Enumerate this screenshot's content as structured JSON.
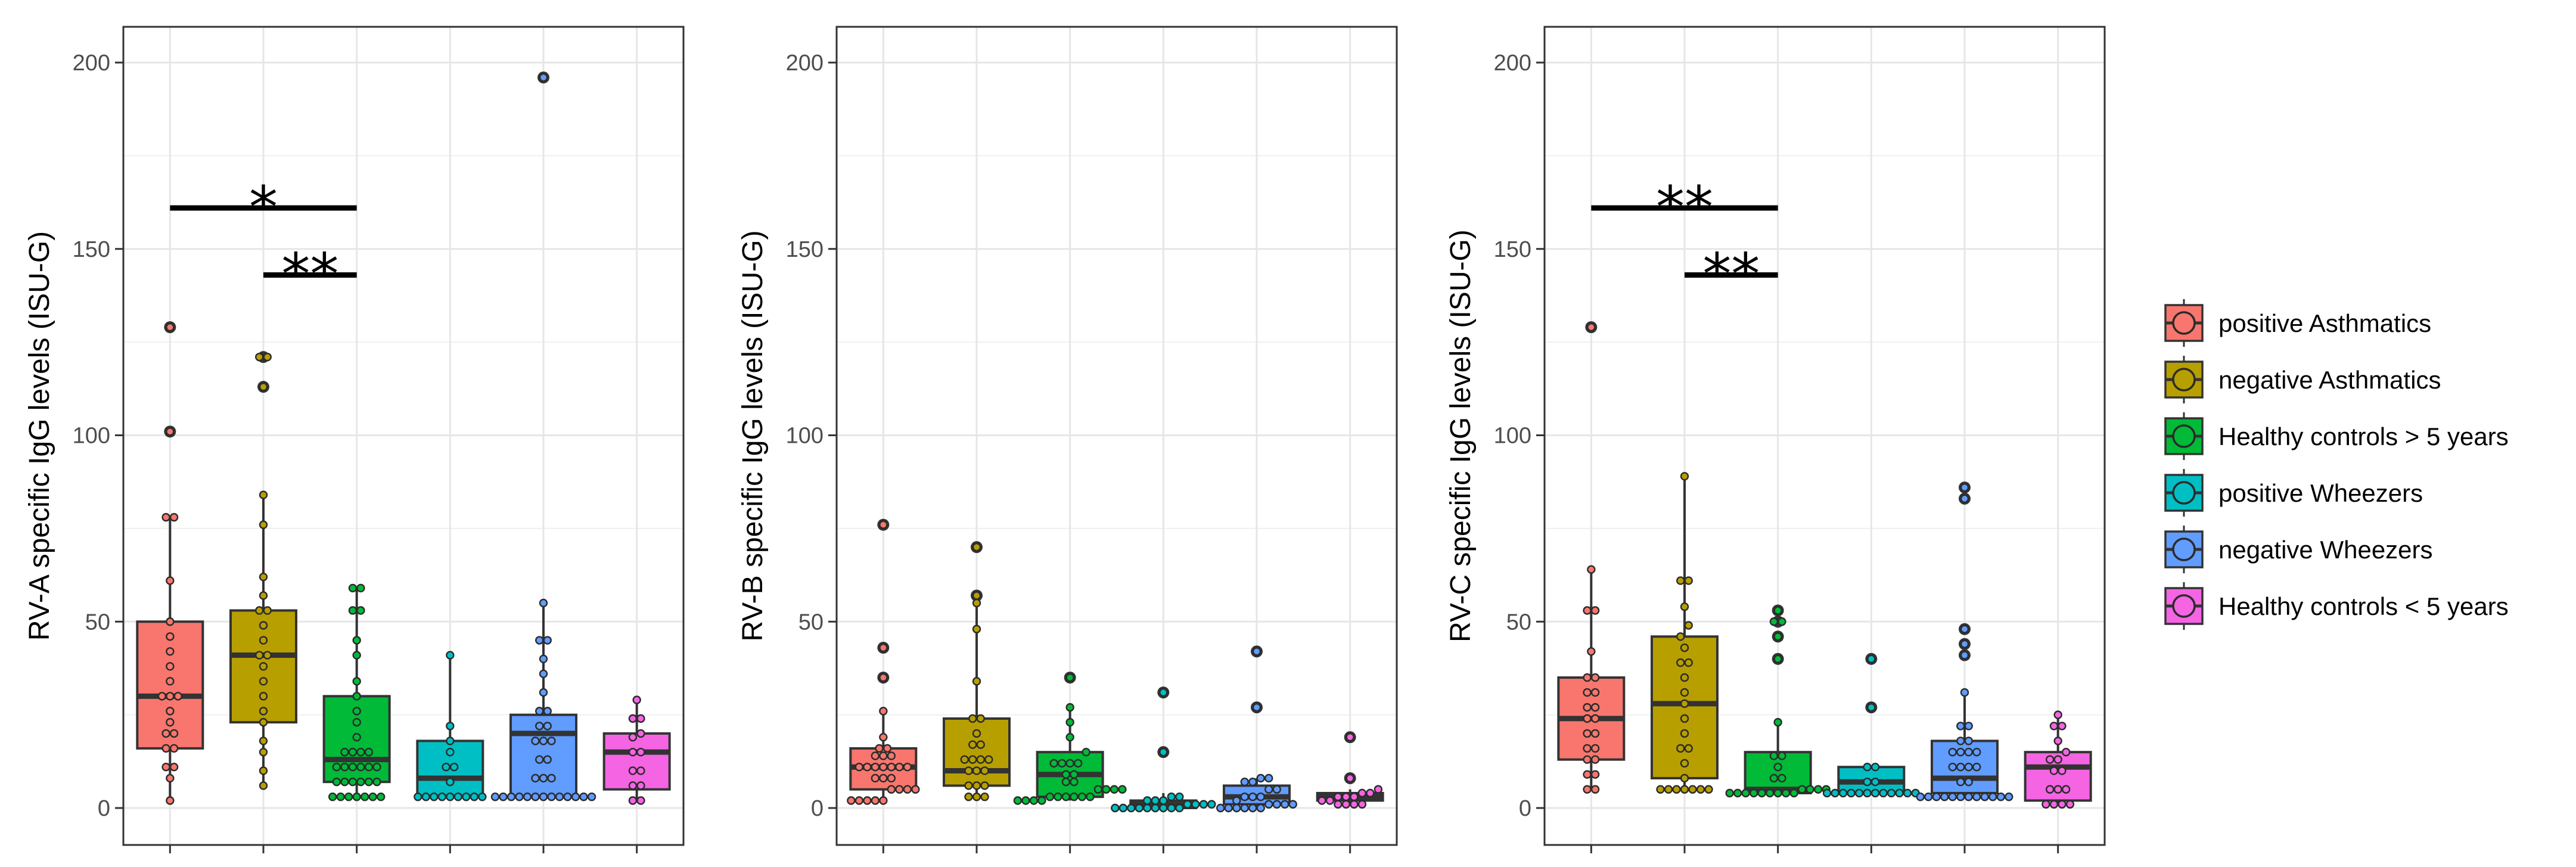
{
  "chart_data": {
    "type": "boxplot",
    "categories": [
      "positive Asthmatics",
      "negative Asthmatics",
      "Healthy controls > 5 years",
      "positive Wheezers",
      "negative Wheezers",
      "Healthy controls < 5 years"
    ],
    "colors": [
      "#F8766D",
      "#B79F00",
      "#00BA38",
      "#00BFC4",
      "#619CFF",
      "#F564E3"
    ],
    "ylim": [
      0,
      210
    ],
    "yticks": [
      0,
      50,
      100,
      150,
      200
    ],
    "legend": {
      "position": "right",
      "entries": [
        "positive Asthmatics",
        "negative Asthmatics",
        "Healthy controls > 5 years",
        "positive Wheezers",
        "negative Wheezers",
        "Healthy controls < 5 years"
      ]
    },
    "panels": [
      {
        "ylabel": "RV-A specific IgG levels (ISU-G)",
        "groups": [
          {
            "q1": 16,
            "median": 30,
            "q3": 50,
            "whisker_low": 2,
            "whisker_high": 78,
            "outliers": [
              101,
              129
            ],
            "points": [
              2,
              8,
              11,
              11,
              16,
              16,
              20,
              20,
              23,
              26,
              30,
              30,
              30,
              34,
              38,
              42,
              46,
              50,
              61,
              78,
              78,
              101,
              129
            ]
          },
          {
            "q1": 23,
            "median": 41,
            "q3": 53,
            "whisker_low": 6,
            "whisker_high": 84,
            "outliers": [
              113,
              121
            ],
            "points": [
              6,
              10,
              15,
              18,
              23,
              26,
              30,
              34,
              38,
              41,
              41,
              45,
              49,
              53,
              53,
              57,
              62,
              76,
              84,
              113,
              121,
              121
            ]
          },
          {
            "q1": 7,
            "median": 13,
            "q3": 30,
            "whisker_low": 3,
            "whisker_high": 59,
            "outliers": [],
            "points": [
              3,
              3,
              3,
              3,
              3,
              3,
              3,
              7,
              7,
              7,
              7,
              7,
              7,
              11,
              11,
              11,
              11,
              11,
              11,
              15,
              15,
              15,
              15,
              19,
              23,
              26,
              30,
              34,
              41,
              45,
              53,
              53,
              59,
              59
            ]
          },
          {
            "q1": 3,
            "median": 8,
            "q3": 18,
            "whisker_low": 3,
            "whisker_high": 41,
            "outliers": [],
            "points": [
              3,
              3,
              3,
              3,
              3,
              3,
              3,
              3,
              3,
              7,
              11,
              11,
              15,
              18,
              22,
              41
            ]
          },
          {
            "q1": 3,
            "median": 20,
            "q3": 25,
            "whisker_low": 3,
            "whisker_high": 55,
            "outliers": [
              196
            ],
            "points": [
              3,
              3,
              3,
              3,
              3,
              3,
              3,
              3,
              3,
              3,
              3,
              3,
              3,
              8,
              8,
              8,
              13,
              13,
              18,
              18,
              18,
              22,
              22,
              26,
              26,
              31,
              36,
              40,
              45,
              45,
              55,
              196
            ]
          },
          {
            "q1": 5,
            "median": 15,
            "q3": 20,
            "whisker_low": 2,
            "whisker_high": 29,
            "outliers": [],
            "points": [
              2,
              2,
              6,
              6,
              10,
              10,
              15,
              15,
              19,
              20,
              24,
              24,
              29
            ]
          }
        ],
        "significance": [
          {
            "from": 0,
            "to": 2,
            "label": "*",
            "y": 161
          },
          {
            "from": 1,
            "to": 2,
            "label": "**",
            "y": 143
          }
        ]
      },
      {
        "ylabel": "RV-B specific IgG levels (ISU-G)",
        "groups": [
          {
            "q1": 5,
            "median": 11,
            "q3": 16,
            "whisker_low": 2,
            "whisker_high": 26,
            "outliers": [
              35,
              43,
              76
            ],
            "points": [
              2,
              2,
              2,
              2,
              2,
              5,
              5,
              5,
              5,
              8,
              8,
              8,
              11,
              11,
              11,
              11,
              11,
              11,
              11,
              14,
              14,
              14,
              16,
              16,
              19,
              26,
              35,
              43,
              76
            ]
          },
          {
            "q1": 6,
            "median": 10,
            "q3": 24,
            "whisker_low": 3,
            "whisker_high": 55,
            "outliers": [
              57,
              70
            ],
            "points": [
              3,
              3,
              3,
              6,
              6,
              6,
              10,
              10,
              10,
              13,
              13,
              13,
              13,
              17,
              17,
              20,
              24,
              24,
              34,
              48,
              55,
              57,
              70
            ]
          },
          {
            "q1": 3,
            "median": 9,
            "q3": 15,
            "whisker_low": 2,
            "whisker_high": 27,
            "outliers": [
              35
            ],
            "points": [
              2,
              2,
              2,
              2,
              3,
              3,
              3,
              3,
              3,
              3,
              5,
              5,
              5,
              5,
              7,
              7,
              9,
              9,
              12,
              12,
              12,
              12,
              15,
              19,
              23,
              27,
              35
            ]
          },
          {
            "q1": 0,
            "median": 1,
            "q3": 2,
            "whisker_low": 0,
            "whisker_high": 4,
            "outliers": [
              15,
              31
            ],
            "points": [
              0,
              0,
              0,
              0,
              0,
              0,
              0,
              0,
              0,
              1,
              1,
              1,
              1,
              2,
              2,
              2,
              3,
              3,
              15,
              31
            ]
          },
          {
            "q1": 1,
            "median": 3,
            "q3": 6,
            "whisker_low": 0,
            "whisker_high": 8,
            "outliers": [
              27,
              42
            ],
            "points": [
              0,
              0,
              0,
              0,
              0,
              0,
              1,
              1,
              1,
              1,
              2,
              3,
              3,
              3,
              5,
              5,
              7,
              7,
              8,
              8,
              27,
              42
            ]
          },
          {
            "q1": 2,
            "median": 3,
            "q3": 4,
            "whisker_low": 1,
            "whisker_high": 5,
            "outliers": [
              8,
              19
            ],
            "points": [
              1,
              1,
              1,
              1,
              2,
              2,
              3,
              3,
              3,
              4,
              4,
              5,
              8,
              19
            ]
          }
        ],
        "significance": []
      },
      {
        "ylabel": "RV-C specific IgG levels (ISU-G)",
        "groups": [
          {
            "q1": 13,
            "median": 24,
            "q3": 35,
            "whisker_low": 5,
            "whisker_high": 64,
            "outliers": [
              129
            ],
            "points": [
              5,
              5,
              9,
              9,
              13,
              13,
              16,
              16,
              20,
              20,
              24,
              24,
              27,
              27,
              31,
              31,
              35,
              35,
              42,
              53,
              53,
              64,
              129
            ]
          },
          {
            "q1": 8,
            "median": 28,
            "q3": 46,
            "whisker_low": 5,
            "whisker_high": 89,
            "outliers": [],
            "points": [
              5,
              5,
              5,
              5,
              5,
              5,
              5,
              8,
              12,
              16,
              16,
              20,
              24,
              28,
              31,
              35,
              39,
              39,
              43,
              46,
              49,
              54,
              61,
              61,
              89
            ]
          },
          {
            "q1": 4,
            "median": 5,
            "q3": 15,
            "whisker_low": 4,
            "whisker_high": 23,
            "outliers": [
              40,
              46,
              50,
              50,
              53
            ],
            "points": [
              4,
              4,
              4,
              4,
              4,
              4,
              4,
              4,
              4,
              5,
              5,
              5,
              5,
              8,
              8,
              11,
              14,
              14,
              23,
              40,
              46,
              50,
              50,
              53
            ]
          },
          {
            "q1": 4,
            "median": 7,
            "q3": 11,
            "whisker_low": 4,
            "whisker_high": 11,
            "outliers": [
              27,
              40
            ],
            "points": [
              4,
              4,
              4,
              4,
              4,
              4,
              4,
              4,
              4,
              4,
              4,
              4,
              7,
              7,
              11,
              11,
              27,
              40
            ]
          },
          {
            "q1": 4,
            "median": 8,
            "q3": 18,
            "whisker_low": 3,
            "whisker_high": 31,
            "outliers": [
              41,
              44,
              48,
              83,
              86
            ],
            "points": [
              3,
              3,
              3,
              3,
              3,
              3,
              3,
              3,
              3,
              3,
              3,
              3,
              7,
              7,
              11,
              11,
              11,
              11,
              15,
              15,
              15,
              15,
              18,
              18,
              22,
              22,
              31,
              41,
              44,
              48,
              83,
              86
            ]
          },
          {
            "q1": 2,
            "median": 11,
            "q3": 15,
            "whisker_low": 1,
            "whisker_high": 25,
            "outliers": [],
            "points": [
              1,
              1,
              1,
              1,
              5,
              5,
              5,
              10,
              10,
              13,
              13,
              15,
              18,
              22,
              22,
              25
            ]
          }
        ],
        "significance": [
          {
            "from": 0,
            "to": 2,
            "label": "**",
            "y": 161
          },
          {
            "from": 1,
            "to": 2,
            "label": "**",
            "y": 143
          }
        ]
      }
    ]
  }
}
